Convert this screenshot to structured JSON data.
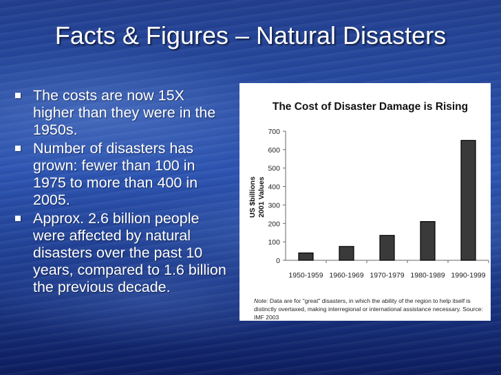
{
  "slide": {
    "title": "Facts & Figures – Natural Disasters",
    "bullets": [
      "The costs are now 15X higher than they were in the 1950s.",
      "Number of disasters has grown: fewer than 100 in 1975 to more than 400 in 2005.",
      "Approx. 2.6 billion people were affected by natural disasters over the past 10 years, compared to 1.6 billion the previous decade."
    ]
  },
  "chart_data": {
    "type": "bar",
    "title": "The Cost of Disaster Damage is Rising",
    "ylabel_line1": "US $billions",
    "ylabel_line2": "2001 Values",
    "xlabel": "",
    "categories": [
      "1950-1959",
      "1960-1969",
      "1970-1979",
      "1980-1989",
      "1990-1999"
    ],
    "values": [
      40,
      75,
      135,
      210,
      650
    ],
    "ylim": [
      0,
      700
    ],
    "yticks": [
      0,
      100,
      200,
      300,
      400,
      500,
      600,
      700
    ],
    "grid": false,
    "legend": "none",
    "bar_color": "#3a3a3a",
    "note_label": "Note:",
    "note_text": " Data are for \"great\" disasters, in which the ability of the region to help itself is distinctly overtaxed, making interregional or international assistance necessary. Source: IMF 2003"
  }
}
